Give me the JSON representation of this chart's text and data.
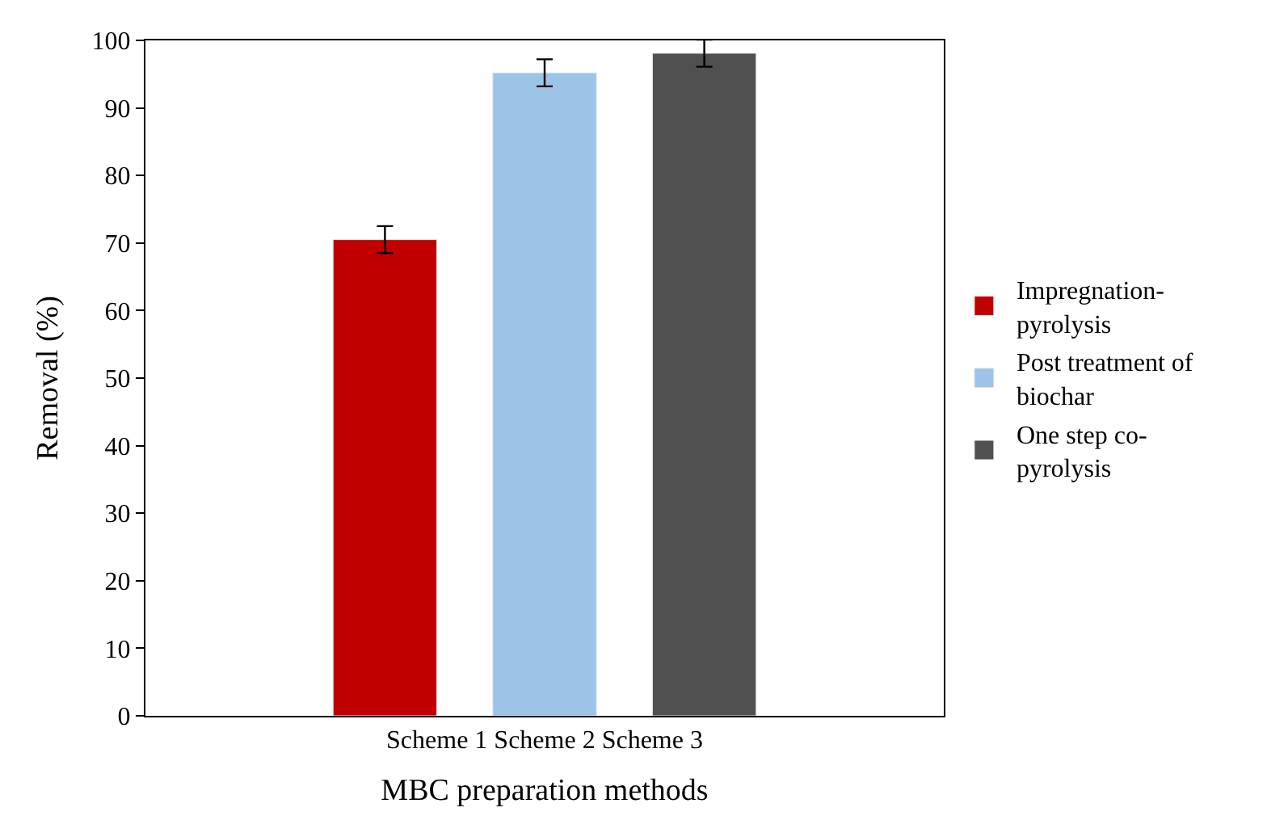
{
  "chart_data": {
    "type": "bar",
    "xlabel": "MBC preparation methods",
    "ylabel": "Removal (%)",
    "categories": [
      "Scheme 1 Scheme 2 Scheme 3"
    ],
    "series": [
      {
        "name": "Impregnation-pyrolysis",
        "color": "#c00000",
        "values": [
          70.5
        ],
        "errors": [
          2
        ]
      },
      {
        "name": "Post treatment of biochar",
        "color": "#9dc3e6",
        "values": [
          95.2
        ],
        "errors": [
          2
        ]
      },
      {
        "name": "One step co-pyrolysis",
        "color": "#505050",
        "values": [
          98.1
        ],
        "errors": [
          2
        ]
      }
    ],
    "ylim": [
      0,
      100
    ],
    "yticks": [
      0,
      10,
      20,
      30,
      40,
      50,
      60,
      70,
      80,
      90,
      100
    ],
    "legend": "right"
  }
}
